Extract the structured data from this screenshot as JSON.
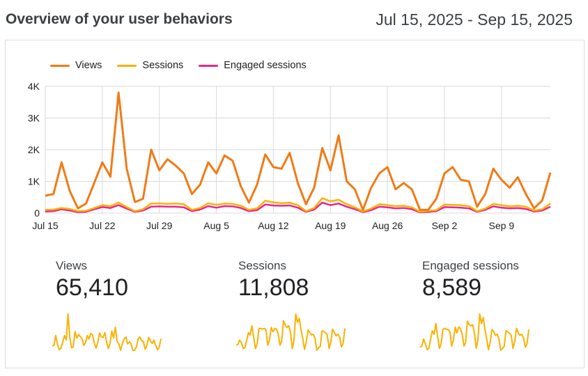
{
  "header": {
    "title": "Overview of your user behaviors",
    "date_range": "Jul 15, 2025 - Sep 15, 2025"
  },
  "colors": {
    "views": "#f07b16",
    "sessions": "#fbb100",
    "engaged": "#e8278c",
    "grid": "#d9d9d9",
    "axis_text": "#202124"
  },
  "chart_data": {
    "type": "line",
    "ylim": [
      0,
      4000
    ],
    "y_ticks": [
      {
        "v": 0,
        "label": "0"
      },
      {
        "v": 1000,
        "label": "1K"
      },
      {
        "v": 2000,
        "label": "2K"
      },
      {
        "v": 3000,
        "label": "3K"
      },
      {
        "v": 4000,
        "label": "4K"
      }
    ],
    "x_ticks": [
      {
        "i": 0,
        "label": "Jul 15"
      },
      {
        "i": 7,
        "label": "Jul 22"
      },
      {
        "i": 14,
        "label": "Jul 29"
      },
      {
        "i": 21,
        "label": "Aug 5"
      },
      {
        "i": 28,
        "label": "Aug 12"
      },
      {
        "i": 35,
        "label": "Aug 19"
      },
      {
        "i": 42,
        "label": "Aug 26"
      },
      {
        "i": 49,
        "label": "Sep 2"
      },
      {
        "i": 56,
        "label": "Sep 9"
      }
    ],
    "x_count": 63,
    "series": [
      {
        "name": "Views",
        "color_key": "views",
        "values": [
          550,
          600,
          1600,
          700,
          150,
          300,
          950,
          1600,
          1150,
          3800,
          1400,
          350,
          450,
          2000,
          1350,
          1700,
          1500,
          1250,
          600,
          900,
          1600,
          1250,
          1820,
          1650,
          850,
          330,
          900,
          1850,
          1450,
          1400,
          1900,
          950,
          280,
          800,
          2050,
          1350,
          2450,
          1000,
          750,
          100,
          800,
          1250,
          1450,
          750,
          950,
          750,
          100,
          100,
          450,
          1250,
          1450,
          1050,
          1000,
          200,
          600,
          1400,
          1050,
          800,
          1130,
          600,
          150,
          400,
          1280
        ]
      },
      {
        "name": "Sessions",
        "color_key": "sessions",
        "values": [
          100,
          110,
          160,
          130,
          60,
          70,
          160,
          250,
          220,
          330,
          190,
          60,
          120,
          300,
          300,
          290,
          300,
          280,
          100,
          160,
          310,
          260,
          300,
          290,
          230,
          100,
          150,
          390,
          340,
          310,
          330,
          250,
          60,
          160,
          470,
          370,
          420,
          280,
          180,
          50,
          140,
          280,
          250,
          220,
          230,
          180,
          40,
          70,
          90,
          270,
          260,
          250,
          220,
          60,
          140,
          290,
          250,
          210,
          230,
          200,
          80,
          120,
          300
        ]
      },
      {
        "name": "Engaged sessions",
        "color_key": "engaged",
        "values": [
          50,
          60,
          120,
          80,
          30,
          40,
          120,
          190,
          160,
          250,
          140,
          40,
          80,
          200,
          210,
          200,
          200,
          180,
          60,
          110,
          220,
          170,
          220,
          210,
          160,
          60,
          90,
          270,
          240,
          230,
          240,
          170,
          40,
          110,
          330,
          250,
          300,
          200,
          120,
          30,
          90,
          200,
          180,
          150,
          160,
          120,
          25,
          40,
          60,
          190,
          180,
          170,
          150,
          40,
          100,
          210,
          170,
          150,
          160,
          130,
          50,
          80,
          200
        ]
      }
    ]
  },
  "metrics": [
    {
      "label": "Views",
      "value": "65,410"
    },
    {
      "label": "Sessions",
      "value": "11,808"
    },
    {
      "label": "Engaged sessions",
      "value": "8,589"
    }
  ]
}
